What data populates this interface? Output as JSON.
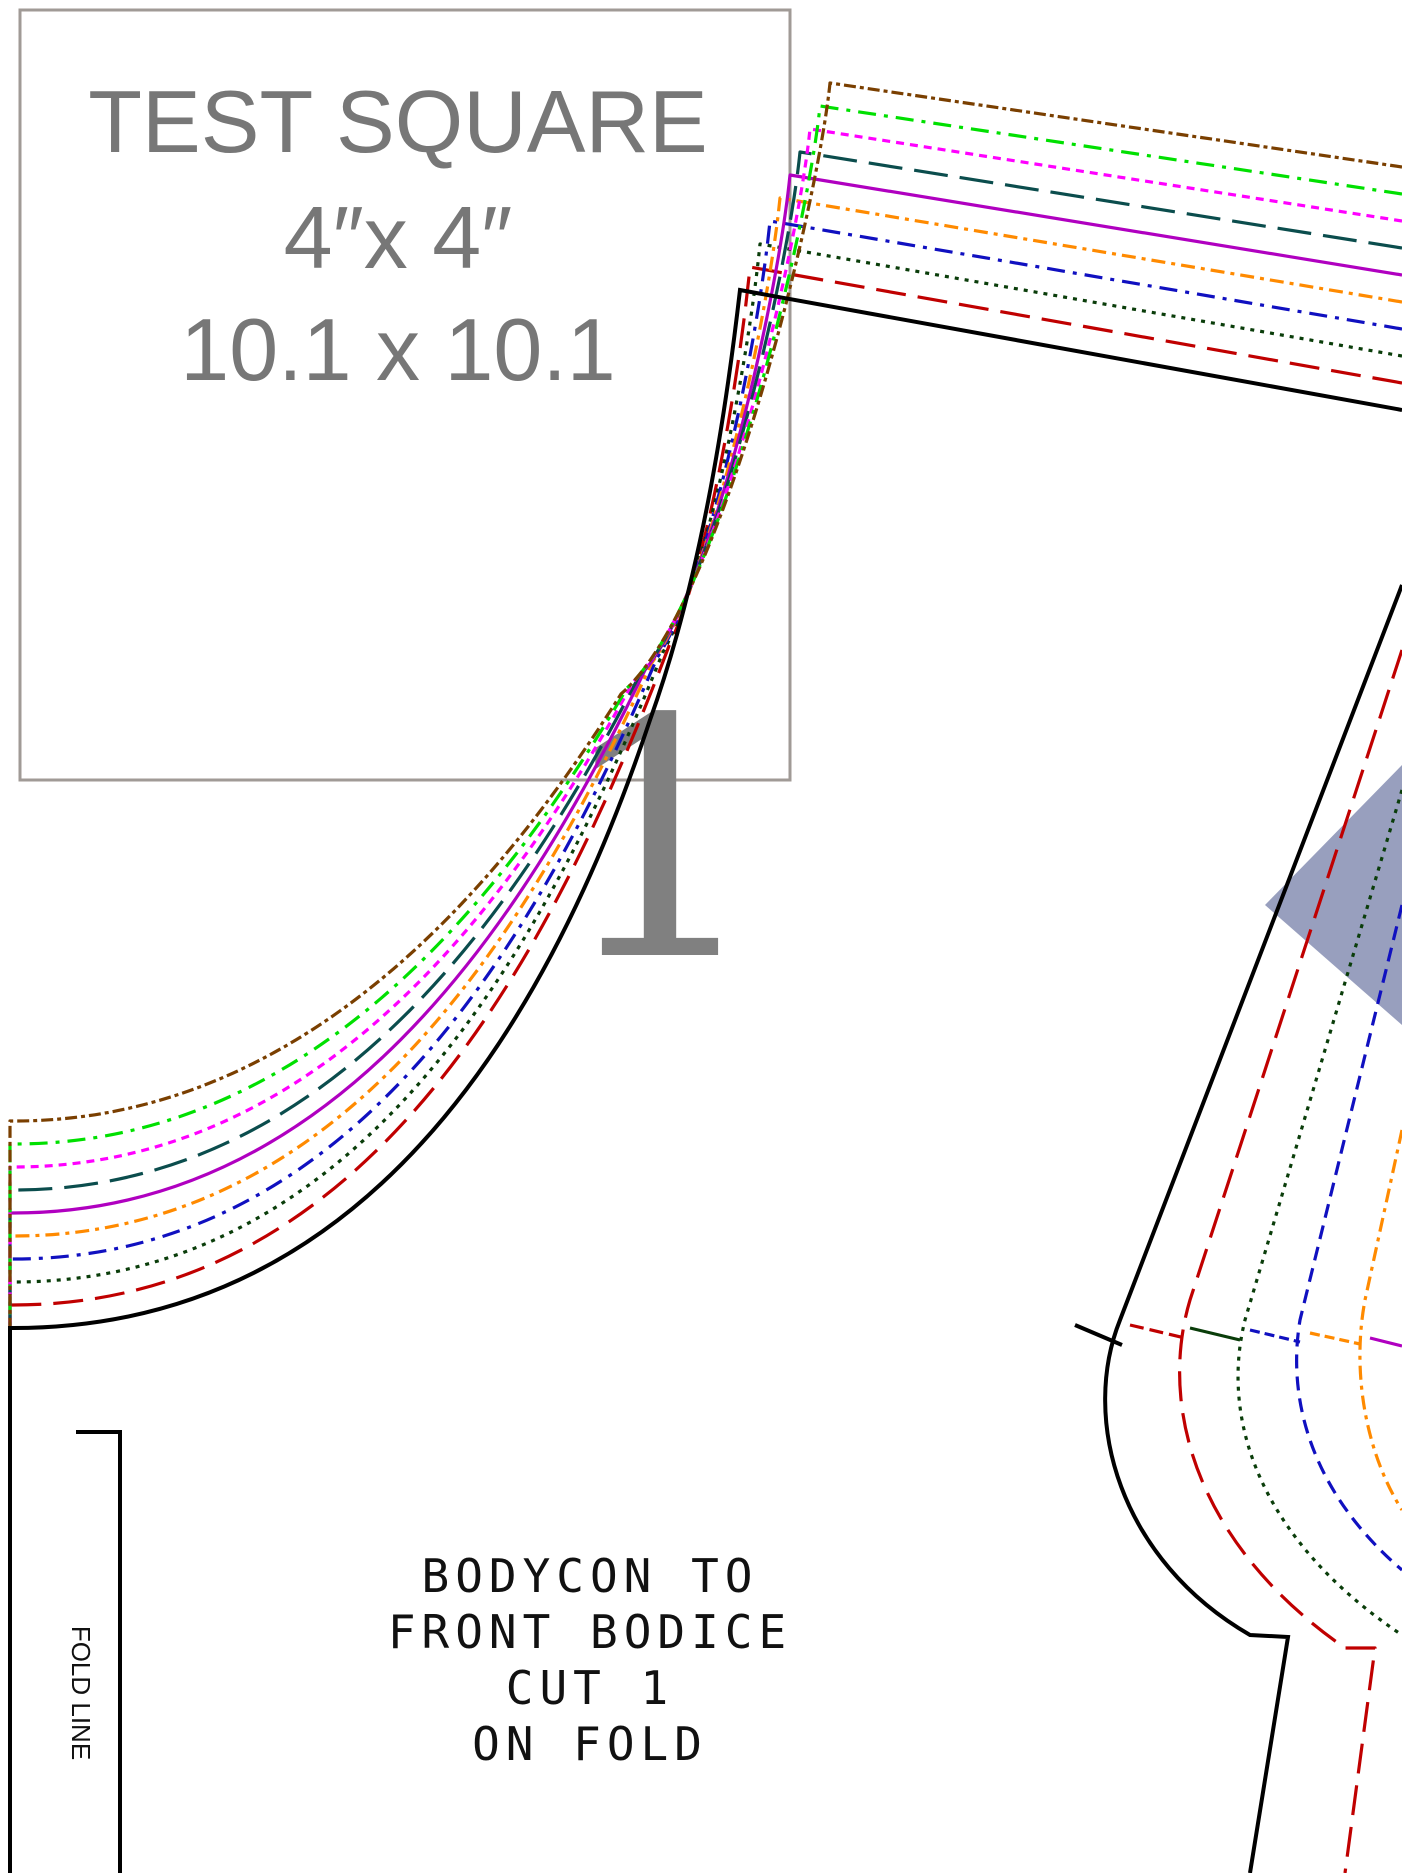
{
  "test_square": {
    "title": "TEST SQUARE",
    "imperial": "4″x 4″",
    "metric": "10.1 x 10.1"
  },
  "page_number": "1",
  "piece_label": {
    "lines": [
      "BODYCON TO",
      "FRONT BODICE",
      "CUT 1",
      "ON FOLD"
    ]
  },
  "fold_line_label": "FOLD LINE",
  "colors": {
    "cut_line": "#000000",
    "test_square_border": "#a09a96",
    "highlight_triangle": "#8f97b8",
    "size_lines": [
      "#c00000",
      "#0a3d0a",
      "#1010c0",
      "#ff8a00",
      "#b000c0",
      "#0b4d4d",
      "#ff00ff",
      "#00e000",
      "#7a3f00"
    ]
  }
}
